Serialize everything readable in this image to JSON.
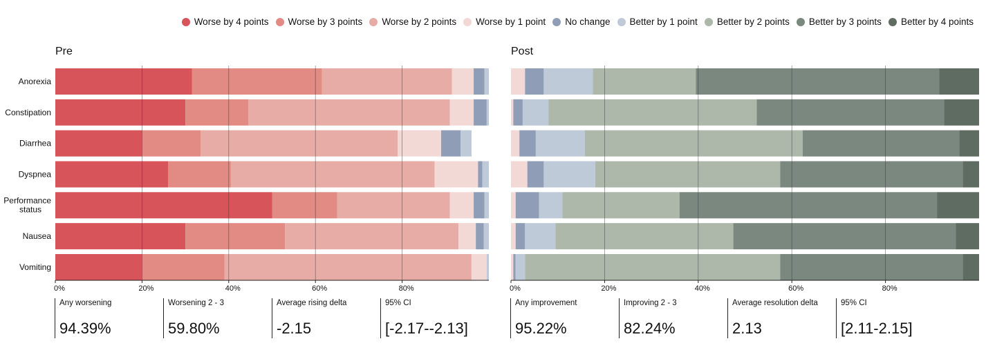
{
  "legend": [
    {
      "label": "Worse by 4 points",
      "color": "#d6545a"
    },
    {
      "label": "Worse by 3 points",
      "color": "#e28a84"
    },
    {
      "label": "Worse by 2 points",
      "color": "#e8aca6"
    },
    {
      "label": "Worse by 1 point",
      "color": "#f3d9d6"
    },
    {
      "label": "No change",
      "color": "#8f9db6"
    },
    {
      "label": "Better by 1 point",
      "color": "#bfcad8"
    },
    {
      "label": "Better by 2 points",
      "color": "#adb8ab"
    },
    {
      "label": "Better by 3 points",
      "color": "#7a8880"
    },
    {
      "label": "Better by 4 points",
      "color": "#5f6c62"
    }
  ],
  "panels": {
    "pre": {
      "title": "Pre",
      "stats": [
        {
          "label": "Any worsening",
          "value": "94.39%"
        },
        {
          "label": "Worsening 2 - 3",
          "value": "59.80%"
        },
        {
          "label": "Average rising delta",
          "value": "-2.15"
        },
        {
          "label": "95% CI",
          "value": "[-2.17--2.13]"
        }
      ]
    },
    "post": {
      "title": "Post",
      "stats": [
        {
          "label": "Any improvement",
          "value": "95.22%"
        },
        {
          "label": "Improving 2 - 3",
          "value": "82.24%"
        },
        {
          "label": "Average resolution delta",
          "value": "2.13"
        },
        {
          "label": "95% CI",
          "value": "[2.11-2.15]"
        }
      ]
    }
  },
  "chart_data": [
    {
      "type": "bar",
      "orientation": "horizontal",
      "stacked": true,
      "title": "Pre",
      "categories": [
        "Anorexia",
        "Constipation",
        "Diarrhea",
        "Dyspnea",
        "Performance status",
        "Nausea",
        "Vomiting"
      ],
      "xlim": [
        0,
        100
      ],
      "x_ticks": [
        "0%",
        "20%",
        "40%",
        "60%",
        "80%"
      ],
      "grid": true,
      "series": [
        {
          "name": "Worse by 4 points",
          "values": [
            31.5,
            30.0,
            20.0,
            26.0,
            50.0,
            30.0,
            20.0
          ]
        },
        {
          "name": "Worse by 3 points",
          "values": [
            30.0,
            14.5,
            13.5,
            14.5,
            15.0,
            23.0,
            19.0
          ]
        },
        {
          "name": "Worse by 2 points",
          "values": [
            30.0,
            46.5,
            45.5,
            47.0,
            26.0,
            40.0,
            57.0
          ]
        },
        {
          "name": "Worse by 1 point",
          "values": [
            5.0,
            5.5,
            10.0,
            10.0,
            5.5,
            4.0,
            3.5
          ]
        },
        {
          "name": "No change",
          "values": [
            2.5,
            3.0,
            4.5,
            1.0,
            2.5,
            1.8,
            0.0
          ]
        },
        {
          "name": "Better by 1 point",
          "values": [
            1.0,
            0.5,
            2.5,
            1.5,
            1.0,
            1.2,
            0.5
          ]
        }
      ]
    },
    {
      "type": "bar",
      "orientation": "horizontal",
      "stacked": true,
      "title": "Post",
      "categories": [
        "Anorexia",
        "Constipation",
        "Diarrhea",
        "Dyspnea",
        "Performance status",
        "Nausea",
        "Vomiting"
      ],
      "xlim": [
        0,
        100
      ],
      "x_ticks": [
        "0%",
        "20%",
        "40%",
        "60%",
        "80%"
      ],
      "grid": true,
      "series": [
        {
          "name": "Worse by 1 point",
          "values": [
            3.0,
            0.5,
            1.8,
            3.5,
            1.0,
            1.0,
            0.5
          ]
        },
        {
          "name": "No change",
          "values": [
            4.0,
            2.0,
            3.5,
            3.5,
            5.0,
            2.0,
            0.5
          ]
        },
        {
          "name": "Better by 1 point",
          "values": [
            10.5,
            5.5,
            10.5,
            11.0,
            5.0,
            6.5,
            2.0
          ]
        },
        {
          "name": "Better by 2 points",
          "values": [
            22.0,
            44.5,
            46.5,
            39.5,
            25.0,
            38.0,
            54.5
          ]
        },
        {
          "name": "Better by 3 points",
          "values": [
            52.0,
            40.0,
            33.5,
            39.0,
            55.0,
            47.5,
            39.0
          ]
        },
        {
          "name": "Better by 4 points",
          "values": [
            8.5,
            7.5,
            4.2,
            3.5,
            9.0,
            5.0,
            3.5
          ]
        }
      ]
    }
  ]
}
